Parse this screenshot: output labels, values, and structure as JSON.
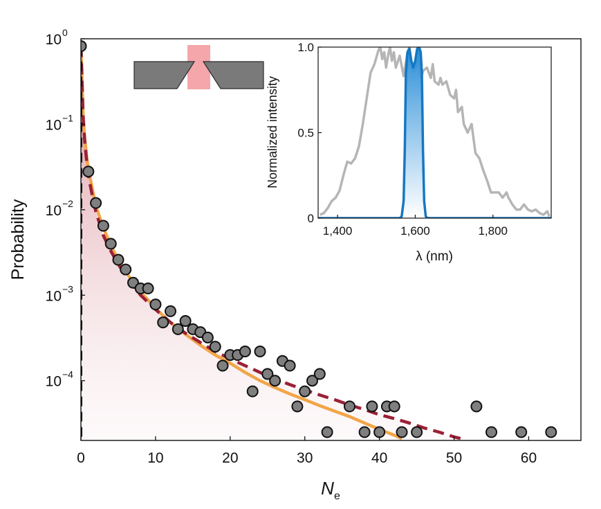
{
  "chart_data": [
    {
      "type": "scatter",
      "xlabel": "N",
      "xlabel_sub": "e",
      "ylabel": "Probability",
      "xlim": [
        0,
        67
      ],
      "ylim": [
        2e-05,
        1
      ],
      "yscale": "log",
      "x_ticks": [
        0,
        10,
        20,
        30,
        40,
        50,
        60
      ],
      "x_tick_labels": [
        "0",
        "10",
        "20",
        "30",
        "40",
        "50",
        "60"
      ],
      "y_ticks": [
        1,
        0.1,
        0.01,
        0.001,
        0.0001
      ],
      "y_tick_labels": [
        {
          "base": "10",
          "exp": "0"
        },
        {
          "base": "10",
          "exp": "−1"
        },
        {
          "base": "10",
          "exp": "−2"
        },
        {
          "base": "10",
          "exp": "−3"
        },
        {
          "base": "10",
          "exp": "−4"
        }
      ],
      "grid": false,
      "series": [
        {
          "style": "markers",
          "color": "#7f7f7f",
          "edge_color": "#111111",
          "points": [
            [
              0,
              0.82
            ],
            [
              1,
              0.028
            ],
            [
              2,
              0.012
            ],
            [
              3,
              0.0065
            ],
            [
              4,
              0.004
            ],
            [
              5,
              0.0026
            ],
            [
              6,
              0.002
            ],
            [
              7,
              0.0014
            ],
            [
              8,
              0.0012
            ],
            [
              9,
              0.0012
            ],
            [
              10,
              0.00078
            ],
            [
              11,
              0.00048
            ],
            [
              12,
              0.00065
            ],
            [
              13,
              0.0004
            ],
            [
              14,
              0.0005
            ],
            [
              15,
              0.0004
            ],
            [
              16,
              0.00037
            ],
            [
              17,
              0.00032
            ],
            [
              18,
              0.00025
            ],
            [
              19,
              0.00015
            ],
            [
              20,
              0.0002
            ],
            [
              21,
              0.0002
            ],
            [
              22,
              0.00022
            ],
            [
              23,
              7.5e-05
            ],
            [
              24,
              0.00022
            ],
            [
              25,
              0.00012
            ],
            [
              26,
              0.0001
            ],
            [
              27,
              0.00017
            ],
            [
              28,
              0.00015
            ],
            [
              29,
              5e-05
            ],
            [
              30,
              7.5e-05
            ],
            [
              31,
              0.0001
            ],
            [
              32,
              0.00012
            ],
            [
              33,
              2.5e-05
            ],
            [
              36,
              5e-05
            ],
            [
              38,
              2.5e-05
            ],
            [
              39,
              5e-05
            ],
            [
              40,
              2.5e-05
            ],
            [
              41,
              5e-05
            ],
            [
              42,
              5e-05
            ],
            [
              43,
              2.5e-05
            ],
            [
              45,
              2.5e-05
            ],
            [
              53,
              5e-05
            ],
            [
              55,
              2.5e-05
            ],
            [
              59,
              2.5e-05
            ],
            [
              63,
              2.5e-05
            ]
          ]
        },
        {
          "style": "solid",
          "color": "#f2a548",
          "points": [
            [
              0,
              0.82
            ],
            [
              0.1,
              0.5
            ],
            [
              0.2,
              0.25
            ],
            [
              0.3,
              0.13
            ],
            [
              0.5,
              0.07
            ],
            [
              0.8,
              0.04
            ],
            [
              1,
              0.03
            ],
            [
              1.5,
              0.018
            ],
            [
              2,
              0.011
            ],
            [
              3,
              0.0062
            ],
            [
              4,
              0.0038
            ],
            [
              5,
              0.0026
            ],
            [
              6,
              0.0019
            ],
            [
              7,
              0.0014
            ],
            [
              8,
              0.0011
            ],
            [
              10,
              0.0007
            ],
            [
              12,
              0.00048
            ],
            [
              14,
              0.00035
            ],
            [
              16,
              0.00026
            ],
            [
              18,
              0.0002
            ],
            [
              20,
              0.00016
            ],
            [
              22,
              0.000125
            ],
            [
              24,
              0.0001
            ],
            [
              26,
              8.3e-05
            ],
            [
              28,
              7e-05
            ],
            [
              30,
              6e-05
            ],
            [
              32,
              5.1e-05
            ],
            [
              34,
              4.4e-05
            ],
            [
              36,
              3.8e-05
            ],
            [
              38,
              3.2e-05
            ],
            [
              40,
              2.7e-05
            ],
            [
              42,
              2.3e-05
            ],
            [
              43,
              2.1e-05
            ]
          ]
        },
        {
          "style": "dashed",
          "color": "#9b2035",
          "fill_under": true,
          "points": [
            [
              0,
              0.82
            ],
            [
              0.1,
              0.45
            ],
            [
              0.2,
              0.22
            ],
            [
              0.3,
              0.12
            ],
            [
              0.5,
              0.065
            ],
            [
              0.8,
              0.035
            ],
            [
              1,
              0.025
            ],
            [
              1.5,
              0.015
            ],
            [
              2,
              0.0095
            ],
            [
              3,
              0.005
            ],
            [
              4,
              0.0033
            ],
            [
              5,
              0.0023
            ],
            [
              6,
              0.0017
            ],
            [
              7,
              0.0013
            ],
            [
              8,
              0.001
            ],
            [
              10,
              0.00068
            ],
            [
              12,
              0.00048
            ],
            [
              14,
              0.00036
            ],
            [
              16,
              0.00028
            ],
            [
              18,
              0.00022
            ],
            [
              20,
              0.00018
            ],
            [
              22,
              0.00015
            ],
            [
              24,
              0.000125
            ],
            [
              26,
              0.000105
            ],
            [
              28,
              9e-05
            ],
            [
              30,
              7.8e-05
            ],
            [
              32,
              6.8e-05
            ],
            [
              34,
              6e-05
            ],
            [
              36,
              5.2e-05
            ],
            [
              38,
              4.6e-05
            ],
            [
              40,
              4e-05
            ],
            [
              42,
              3.6e-05
            ],
            [
              44,
              3.2e-05
            ],
            [
              46,
              2.8e-05
            ],
            [
              48,
              2.5e-05
            ],
            [
              50,
              2.2e-05
            ],
            [
              51,
              2.1e-05
            ]
          ]
        },
        {
          "style": "dashed",
          "color": "#111111",
          "points": [
            [
              0,
              0.82
            ],
            [
              0,
              2e-05
            ]
          ]
        }
      ]
    },
    {
      "type": "line",
      "xlabel": "λ (nm)",
      "ylabel": "Normalized intensity",
      "xlim": [
        1350,
        1950
      ],
      "ylim": [
        0,
        1
      ],
      "x_ticks": [
        1400,
        1600,
        1800
      ],
      "x_tick_labels": [
        "1,400",
        "1,600",
        "1,800"
      ],
      "y_ticks": [
        0,
        0.5,
        1
      ],
      "y_tick_labels": [
        "0",
        "0.5",
        "1.0"
      ],
      "grid": false,
      "series": [
        {
          "color": "#b5b5b5",
          "points": [
            [
              1355,
              0.02
            ],
            [
              1365,
              0.03
            ],
            [
              1375,
              0.06
            ],
            [
              1385,
              0.1
            ],
            [
              1395,
              0.12
            ],
            [
              1405,
              0.16
            ],
            [
              1415,
              0.25
            ],
            [
              1425,
              0.33
            ],
            [
              1435,
              0.32
            ],
            [
              1445,
              0.35
            ],
            [
              1455,
              0.42
            ],
            [
              1465,
              0.55
            ],
            [
              1475,
              0.7
            ],
            [
              1485,
              0.85
            ],
            [
              1495,
              0.9
            ],
            [
              1505,
              0.98
            ],
            [
              1510,
              1.0
            ],
            [
              1515,
              0.93
            ],
            [
              1520,
              0.97
            ],
            [
              1525,
              0.88
            ],
            [
              1530,
              0.95
            ],
            [
              1535,
              1.0
            ],
            [
              1540,
              0.92
            ],
            [
              1545,
              0.97
            ],
            [
              1550,
              0.88
            ],
            [
              1560,
              0.95
            ],
            [
              1570,
              0.83
            ],
            [
              1580,
              0.97
            ],
            [
              1585,
              1.0
            ],
            [
              1590,
              0.9
            ],
            [
              1595,
              0.85
            ],
            [
              1600,
              0.87
            ],
            [
              1605,
              0.93
            ],
            [
              1610,
              0.88
            ],
            [
              1615,
              0.82
            ],
            [
              1620,
              0.86
            ],
            [
              1630,
              0.88
            ],
            [
              1640,
              0.82
            ],
            [
              1645,
              0.9
            ],
            [
              1650,
              0.8
            ],
            [
              1660,
              0.78
            ],
            [
              1665,
              0.82
            ],
            [
              1670,
              0.78
            ],
            [
              1680,
              0.8
            ],
            [
              1690,
              0.72
            ],
            [
              1700,
              0.7
            ],
            [
              1705,
              0.75
            ],
            [
              1710,
              0.62
            ],
            [
              1720,
              0.65
            ],
            [
              1725,
              0.55
            ],
            [
              1735,
              0.5
            ],
            [
              1745,
              0.55
            ],
            [
              1755,
              0.38
            ],
            [
              1765,
              0.35
            ],
            [
              1775,
              0.28
            ],
            [
              1785,
              0.22
            ],
            [
              1795,
              0.15
            ],
            [
              1805,
              0.15
            ],
            [
              1815,
              0.15
            ],
            [
              1825,
              0.12
            ],
            [
              1835,
              0.15
            ],
            [
              1840,
              0.12
            ],
            [
              1850,
              0.08
            ],
            [
              1860,
              0.05
            ],
            [
              1870,
              0.05
            ],
            [
              1880,
              0.08
            ],
            [
              1890,
              0.05
            ],
            [
              1900,
              0.04
            ],
            [
              1910,
              0.05
            ],
            [
              1920,
              0.03
            ],
            [
              1930,
              0.02
            ],
            [
              1940,
              0.04
            ],
            [
              1945,
              0.01
            ]
          ]
        },
        {
          "color": "#1677c2",
          "fill_under": true,
          "points": [
            [
              1350,
              0.0
            ],
            [
              1560,
              0.0
            ],
            [
              1565,
              0.01
            ],
            [
              1570,
              0.1
            ],
            [
              1573,
              0.4
            ],
            [
              1576,
              0.85
            ],
            [
              1580,
              0.97
            ],
            [
              1585,
              0.99
            ],
            [
              1590,
              0.92
            ],
            [
              1595,
              0.88
            ],
            [
              1600,
              0.92
            ],
            [
              1605,
              0.99
            ],
            [
              1610,
              1.0
            ],
            [
              1614,
              0.97
            ],
            [
              1617,
              0.85
            ],
            [
              1620,
              0.4
            ],
            [
              1623,
              0.1
            ],
            [
              1627,
              0.01
            ],
            [
              1632,
              0.0
            ],
            [
              1950,
              0.0
            ]
          ]
        }
      ]
    }
  ]
}
